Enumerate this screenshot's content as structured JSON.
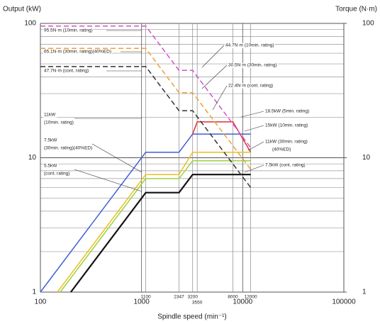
{
  "chart_data": {
    "type": "line",
    "ylabel": "Output (kW)",
    "y2label": "Torque (N·m)",
    "xlabel": "Spindle speed (min⁻¹)",
    "xscale": "log",
    "yscale": "log",
    "xlim": [
      100,
      100000
    ],
    "ylim": [
      1,
      100
    ],
    "y2lim": [
      1,
      100
    ],
    "xticks": [
      100,
      1000,
      10000,
      100000
    ],
    "xticks_minor": [
      1100,
      2347,
      3200,
      3550,
      8000,
      12000
    ],
    "yticks": [
      1,
      10,
      100
    ],
    "y2ticks": [
      1,
      10,
      100
    ],
    "ygrid_minor": [
      2,
      3,
      4,
      5,
      6,
      7,
      8,
      9,
      20,
      30,
      40,
      50,
      60,
      70,
      80,
      90
    ],
    "grid": true,
    "series": [
      {
        "color": "#3f5fd0",
        "x": [
          100,
          1100,
          2347,
          3200,
          12000
        ],
        "values": [
          1,
          11,
          11,
          15,
          15
        ]
      },
      {
        "color": "#e03030",
        "x": [
          3200,
          3550,
          8000,
          12000
        ],
        "values": [
          15,
          18.5,
          18.5,
          11
        ]
      },
      {
        "color": "#e8c020",
        "x": [
          147,
          1100,
          2347,
          3200,
          12000
        ],
        "values": [
          1,
          7.5,
          7.5,
          11,
          11
        ]
      },
      {
        "color": "#9cd23a",
        "x": [
          157,
          1100,
          2347,
          3200,
          12000
        ],
        "values": [
          1,
          7,
          7,
          9.5,
          9.5
        ]
      },
      {
        "color": "#111111",
        "x": [
          200,
          1100,
          2347,
          3200,
          12000
        ],
        "values": [
          1,
          5.5,
          5.5,
          7.5,
          7.5
        ]
      },
      {
        "color": "#d050d0",
        "dash": true,
        "axis": "y2",
        "x": [
          100,
          1100,
          2347,
          3200,
          12000
        ],
        "values": [
          95.5,
          95.5,
          44.7,
          44.7,
          11.9
        ]
      },
      {
        "color": "#f0a030",
        "dash": true,
        "axis": "y2",
        "x": [
          100,
          1100,
          2347,
          3200,
          12000
        ],
        "values": [
          65.1,
          65.1,
          30.5,
          30.5,
          8.2
        ]
      },
      {
        "color": "#333333",
        "dash": true,
        "axis": "y2",
        "x": [
          100,
          1100,
          2347,
          3200,
          12000
        ],
        "values": [
          47.7,
          47.7,
          22.4,
          22.4,
          6
        ]
      }
    ],
    "annotations": [
      "95.5N·m (10min. rating)",
      "65.1N·m (30min. rating)(40%ED)",
      "47.7N·m (cont. rating)",
      "44.7N·m (10min. rating)",
      "30.5N·m (30min. rating)",
      "22.4N·m (cont. rating)",
      "18.5kW (5min. rating)",
      "15kW (10min. rating)",
      "11kW (30min. rating)",
      "(40%ED)",
      "7.5kW (cont. rating)",
      "11kW",
      "(10min. rating)",
      "7.5kW",
      "(30min. rating)(40%ED)",
      "5.5kW",
      "(cont. rating)"
    ]
  }
}
